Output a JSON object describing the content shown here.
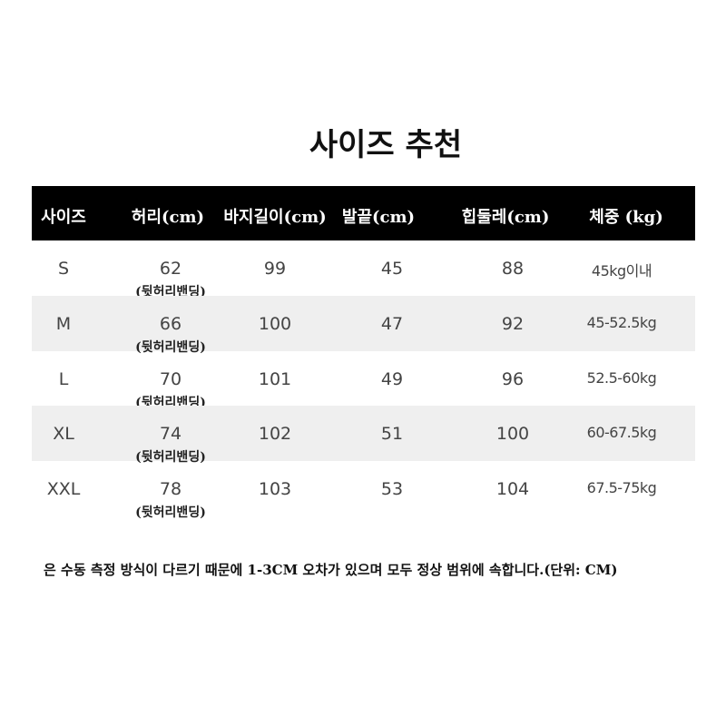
{
  "title": "사이즈 추천",
  "headers": [
    "사이즈",
    "허리(cm)",
    "바지길이(cm)",
    "발끝(cm)",
    "힙둘레(cm)",
    "체중 (kg)"
  ],
  "rows": [
    {
      "size": "S",
      "waist": "62",
      "note": "(뒷허리밴딩)",
      "length": "99",
      "hem": "45",
      "hip": "88",
      "weight": "45kg이내"
    },
    {
      "size": "M",
      "waist": "66",
      "note": "(뒷허리밴딩)",
      "length": "100",
      "hem": "47",
      "hip": "92",
      "weight": "45-52.5kg"
    },
    {
      "size": "L",
      "waist": "70",
      "note": "(뒷허리밴딩)",
      "length": "101",
      "hem": "49",
      "hip": "96",
      "weight": "52.5-60kg"
    },
    {
      "size": "XL",
      "waist": "74",
      "note": "(뒷허리밴딩)",
      "length": "102",
      "hem": "51",
      "hip": "100",
      "weight": "60-67.5kg"
    },
    {
      "size": "XXL",
      "waist": "78",
      "note": "(뒷허리밴딩)",
      "length": "103",
      "hem": "53",
      "hip": "104",
      "weight": "67.5-75kg"
    }
  ],
  "footer": "은 수동 측정 방식이 다르기 때문에 1-3CM 오차가 있으며 모두 정상 범위에 속합니다.(단위: CM)"
}
